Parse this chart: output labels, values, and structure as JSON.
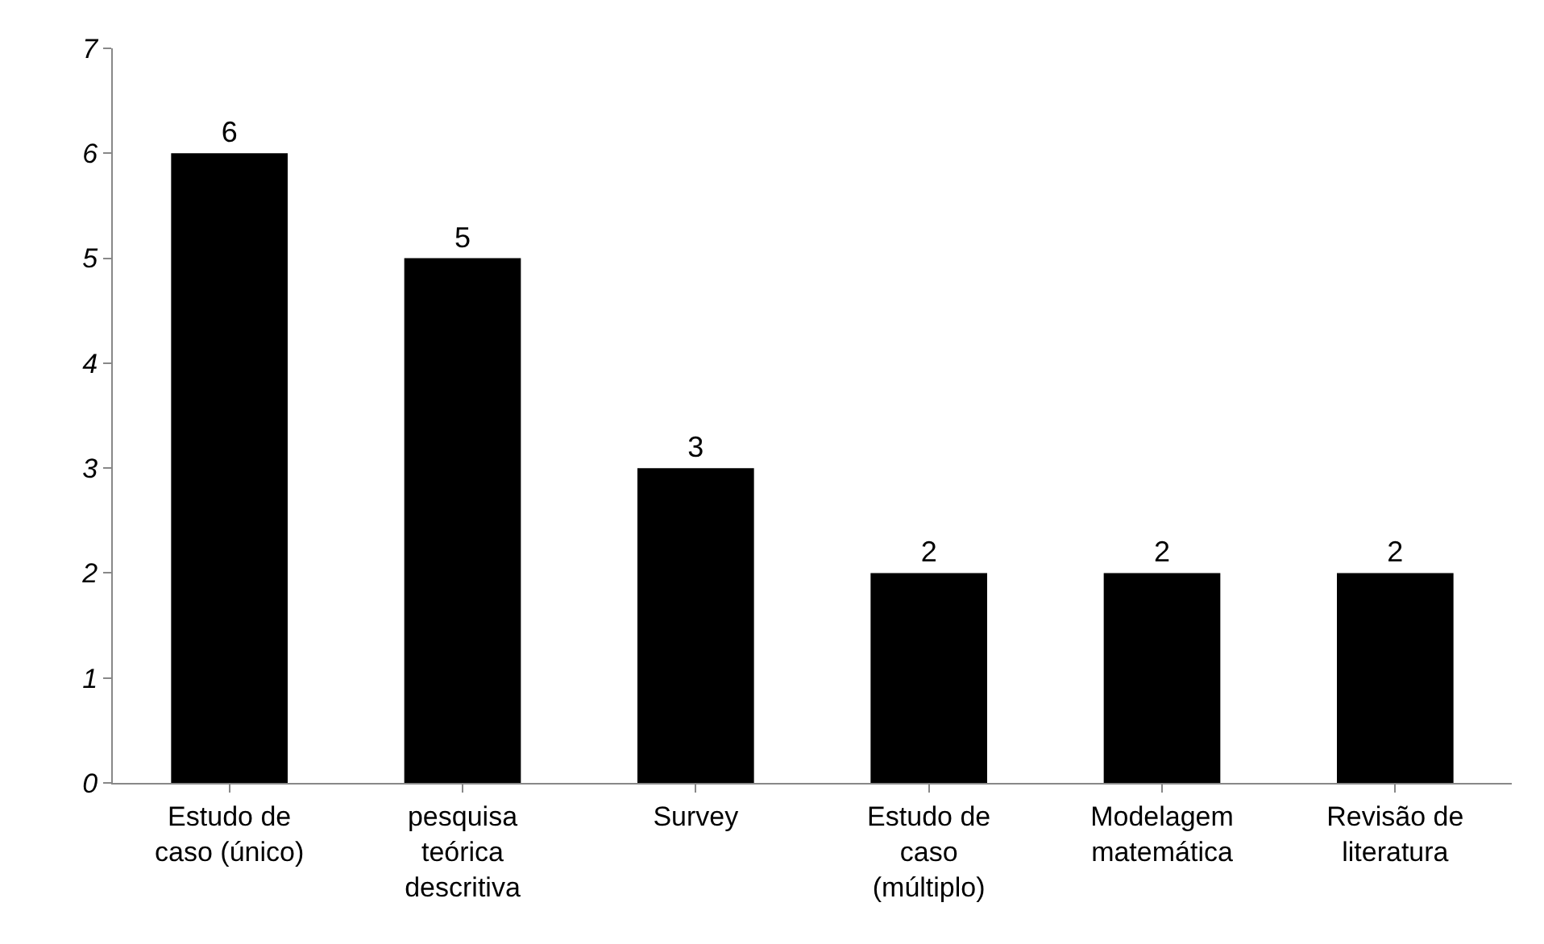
{
  "chart_data": {
    "type": "bar",
    "categories": [
      "Estudo de caso (único)",
      "pesquisa teórica descritiva",
      "Survey",
      "Estudo de caso (múltiplo)",
      "Modelagem matemática",
      "Revisão de literatura"
    ],
    "values": [
      6,
      5,
      3,
      2,
      2,
      2
    ],
    "color": "#000000",
    "ylim": [
      0,
      7
    ],
    "yticks": [
      0,
      1,
      2,
      3,
      4,
      5,
      6,
      7
    ],
    "data_labels": true,
    "grid": false,
    "legend": false
  }
}
